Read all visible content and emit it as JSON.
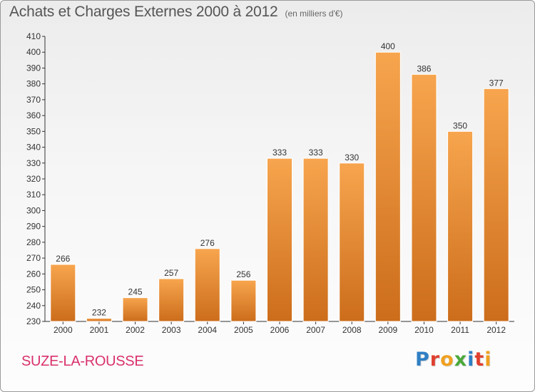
{
  "header": {
    "title": "Achats et Charges Externes 2000 à 2012",
    "subtitle": "(en milliers d'€)"
  },
  "footer": {
    "commune": "SUZE-LA-ROUSSE",
    "logo": [
      "P",
      "r",
      "o",
      "x",
      "i",
      "t",
      "i"
    ]
  },
  "colors": {
    "bar_top": "#f7a54e",
    "bar_bottom": "#cc6d1b",
    "commune": "#d9306d",
    "logo": [
      "#2f7fc4",
      "#e0402f",
      "#f0a020",
      "#4aa83a",
      "#2f7fc4",
      "#e0402f",
      "#f0a020"
    ]
  },
  "chart_data": {
    "type": "bar",
    "title": "Achats et Charges Externes 2000 à 2012",
    "subtitle": "(en milliers d'€)",
    "categories": [
      "2000",
      "2001",
      "2002",
      "2003",
      "2004",
      "2005",
      "2006",
      "2007",
      "2008",
      "2009",
      "2010",
      "2011",
      "2012"
    ],
    "values": [
      266,
      232,
      245,
      257,
      276,
      256,
      333,
      333,
      330,
      400,
      386,
      350,
      377
    ],
    "ylim": [
      230,
      410
    ],
    "ytick_step": 10,
    "grid": false,
    "legend": "none",
    "xlabel": "",
    "ylabel": ""
  }
}
